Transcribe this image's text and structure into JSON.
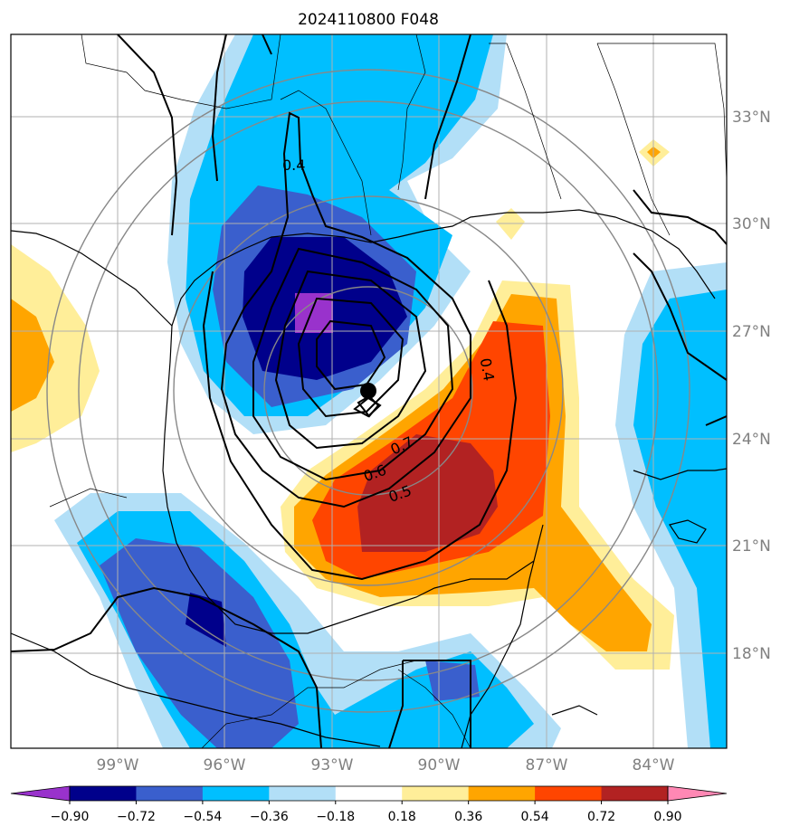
{
  "title": "2024110800 F048",
  "lat_ticks": [
    "33°N",
    "30°N",
    "27°N",
    "24°N",
    "21°N",
    "18°N"
  ],
  "lon_ticks": [
    "99°W",
    "96°W",
    "93°W",
    "90°W",
    "87°W",
    "84°W"
  ],
  "colorbar": {
    "levels": [
      "−0.90",
      "−0.72",
      "−0.54",
      "−0.36",
      "−0.18",
      "0.18",
      "0.36",
      "0.54",
      "0.72",
      "0.90"
    ],
    "colors": [
      "#9932CC",
      "#00008B",
      "#3A5FCD",
      "#00BFFF",
      "#B2DFF7",
      "#FFFFFF",
      "#FFEE99",
      "#FFA500",
      "#FF4500",
      "#B22222",
      "#FF88B4"
    ]
  },
  "contour_labels": [
    "0.4",
    "0.4",
    "0.7",
    "0.6",
    "0.5"
  ],
  "map_features": [
    "storm-center-marker",
    "range-rings",
    "coastlines",
    "state-borders"
  ]
}
